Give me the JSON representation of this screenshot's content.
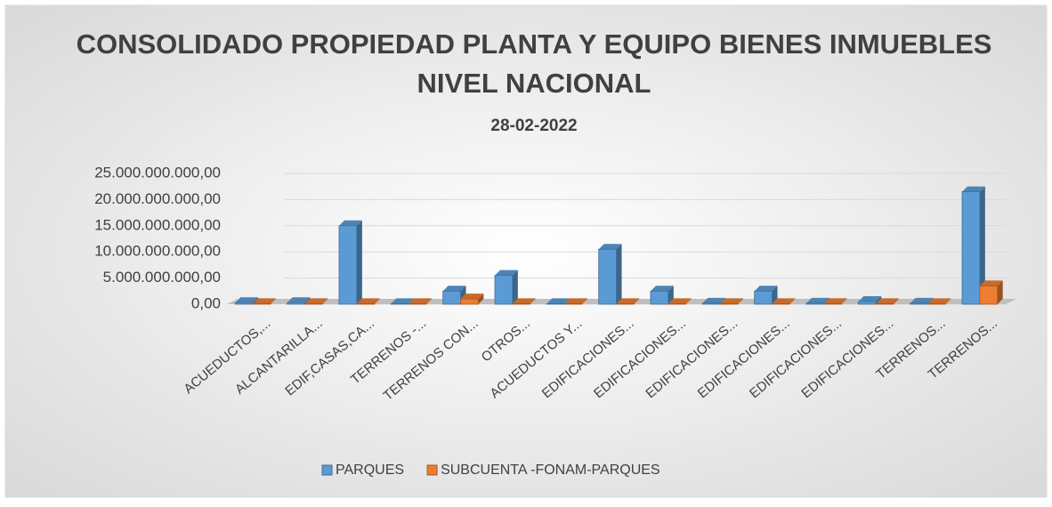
{
  "chart_data": {
    "type": "bar",
    "title": "CONSOLIDADO PROPIEDAD PLANTA Y EQUIPO BIENES INMUEBLES NIVEL NACIONAL",
    "subtitle": "28-02-2022",
    "categories": [
      "ACUEDUCTOS,...",
      "ALCANTARILLA...",
      "EDIF,CASAS,CA...",
      "TERRENOS -...",
      "TERRENOS CON...",
      "OTROS...",
      "ACUEDUCTOS Y...",
      "EDIFICACIONES...",
      "EDIFICACIONES...",
      "EDIFICACIONES...",
      "EDIFICACIONES...",
      "EDIFICACIONES...",
      "EDIFICACIONES...",
      "TERRENOS...",
      "TERRENOS..."
    ],
    "series": [
      {
        "name": "PARQUES",
        "color": "#5b9bd5",
        "values": [
          300000000,
          300000000,
          15000000000,
          100000000,
          2500000000,
          5500000000,
          100000000,
          10500000000,
          2500000000,
          200000000,
          2500000000,
          200000000,
          500000000,
          200000000,
          21500000000
        ]
      },
      {
        "name": "SUBCUENTA -FONAM-PARQUES",
        "color": "#ed7d31",
        "values": [
          100000000,
          100000000,
          100000000,
          100000000,
          1000000000,
          100000000,
          100000000,
          100000000,
          100000000,
          100000000,
          100000000,
          100000000,
          100000000,
          100000000,
          3500000000
        ]
      }
    ],
    "ylim": [
      0,
      25000000000
    ],
    "yticks": [
      {
        "value": 0,
        "label": "0,00"
      },
      {
        "value": 5000000000,
        "label": "5.000.000.000,00"
      },
      {
        "value": 10000000000,
        "label": "10.000.000.000,00"
      },
      {
        "value": 15000000000,
        "label": "15.000.000.000,00"
      },
      {
        "value": 20000000000,
        "label": "20.000.000.000,00"
      },
      {
        "value": 25000000000,
        "label": "25.000.000.000,00"
      }
    ],
    "grid": true
  }
}
